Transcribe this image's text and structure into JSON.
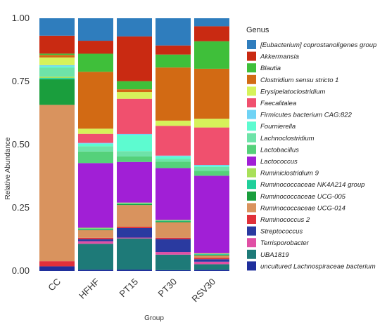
{
  "chart_data": {
    "type": "bar",
    "stacked": true,
    "title": "",
    "xlabel": "Group",
    "ylabel": "Relative Abundance",
    "ylim": [
      0,
      1
    ],
    "yticks": [
      "0.00",
      "0.25",
      "0.50",
      "0.75",
      "1.00"
    ],
    "grid": false,
    "legend_position": "right",
    "legend_title": "Genus",
    "categories": [
      "CC",
      "HFHF",
      "PT15",
      "PT30",
      "RSV30"
    ],
    "series": [
      {
        "name": "uncultured Lachnospiraceae bacterium",
        "color": "#1f2f9c",
        "values": [
          0.018,
          0.005,
          0.005,
          0.003,
          0.005
        ]
      },
      {
        "name": "UBA1819",
        "color": "#1e7a78",
        "values": [
          0.0,
          0.1,
          0.115,
          0.06,
          0.022
        ]
      },
      {
        "name": "Terrisporobacter",
        "color": "#e04fa5",
        "values": [
          0.0,
          0.01,
          0.003,
          0.01,
          0.01
        ]
      },
      {
        "name": "Streptococcus",
        "color": "#2a3aa0",
        "values": [
          0.0,
          0.008,
          0.035,
          0.05,
          0.01
        ]
      },
      {
        "name": "Ruminococcus 2",
        "color": "#e0303a",
        "values": [
          0.02,
          0.005,
          0.005,
          0.005,
          0.005
        ]
      },
      {
        "name": "Ruminococcaceae UCG-014",
        "color": "#d9935e",
        "values": [
          0.61,
          0.03,
          0.08,
          0.06,
          0.01
        ]
      },
      {
        "name": "Ruminococcaceae UCG-005",
        "color": "#1a9e3d",
        "values": [
          0.1,
          0.003,
          0.003,
          0.003,
          0.003
        ]
      },
      {
        "name": "Ruminococcaceae NK4A214 group",
        "color": "#1fcf9a",
        "values": [
          0.005,
          0.003,
          0.003,
          0.003,
          0.003
        ]
      },
      {
        "name": "Ruminiclostridium 9",
        "color": "#a8e05a",
        "values": [
          0.005,
          0.003,
          0.003,
          0.003,
          0.003
        ]
      },
      {
        "name": "Lactococcus",
        "color": "#a11fd6",
        "values": [
          0.0,
          0.25,
          0.15,
          0.2,
          0.31
        ]
      },
      {
        "name": "Lactobacillus",
        "color": "#55d17a",
        "values": [
          0.0,
          0.045,
          0.02,
          0.025,
          0.02
        ]
      },
      {
        "name": "Lachnoclostridium",
        "color": "#6ee3a8",
        "values": [
          0.035,
          0.02,
          0.02,
          0.01,
          0.015
        ]
      },
      {
        "name": "Fournierella",
        "color": "#5dfbd0",
        "values": [
          0.005,
          0.01,
          0.06,
          0.01,
          0.005
        ]
      },
      {
        "name": "Firmicutes bacterium CAG:822",
        "color": "#6fd3f5",
        "values": [
          0.005,
          0.003,
          0.003,
          0.003,
          0.003
        ]
      },
      {
        "name": "Faecalitalea",
        "color": "#f0506e",
        "values": [
          0.0,
          0.035,
          0.13,
          0.115,
          0.15
        ]
      },
      {
        "name": "Erysipelatoclostridium",
        "color": "#d6f25a",
        "values": [
          0.03,
          0.02,
          0.025,
          0.02,
          0.035
        ]
      },
      {
        "name": "Clostridium sensu stricto 1",
        "color": "#d26a14",
        "values": [
          0.01,
          0.22,
          0.01,
          0.205,
          0.2
        ]
      },
      {
        "name": "Blautia",
        "color": "#3fbf3a",
        "values": [
          0.005,
          0.07,
          0.03,
          0.05,
          0.11
        ]
      },
      {
        "name": "Akkermansia",
        "color": "#c92a12",
        "values": [
          0.07,
          0.05,
          0.165,
          0.035,
          0.06
        ]
      },
      {
        "name": "[Eubacterium] coprostanoligenes group",
        "color": "#2f7dbd",
        "values": [
          0.068,
          0.087,
          0.067,
          0.105,
          0.032
        ]
      }
    ]
  }
}
